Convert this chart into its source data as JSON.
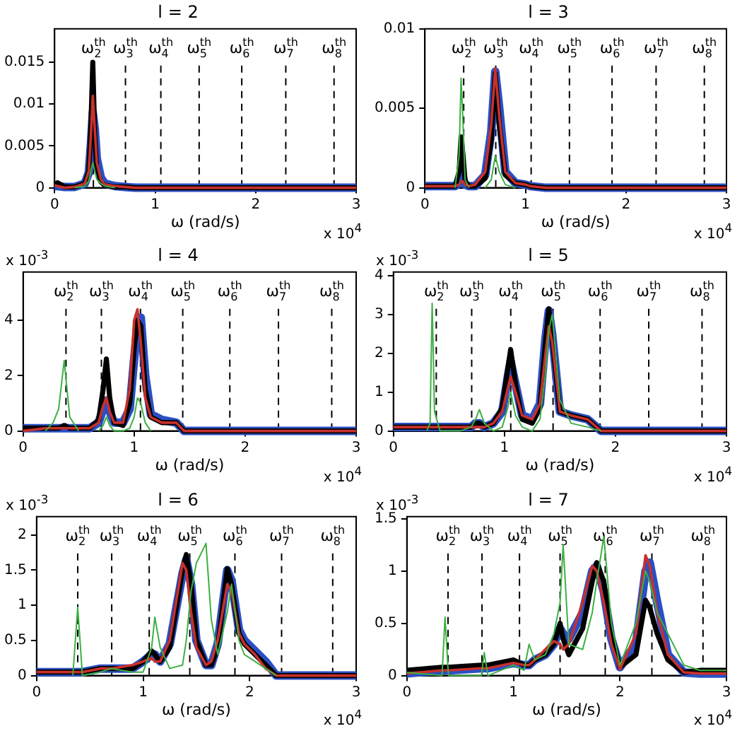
{
  "chart_data": [
    {
      "type": "line",
      "title": "l = 2",
      "xlabel": "ω (rad/s)",
      "annotations": [
        "x 10$^{4}$"
      ],
      "xlim": [
        0,
        3
      ],
      "xticks": [
        0,
        1,
        2,
        3
      ],
      "ylim": [
        0,
        0.019
      ],
      "yticks": [
        0,
        0.005,
        0.01,
        0.015
      ],
      "ref_lines": [
        {
          "axis": "x",
          "value": 0.386,
          "label": "ω$_{2}$$^{th}$",
          "color": "#000000",
          "line_style": "dashed"
        },
        {
          "axis": "x",
          "value": 0.705,
          "label": "ω$_{3}$$^{th}$",
          "color": "#000000",
          "line_style": "dashed"
        },
        {
          "axis": "x",
          "value": 1.057,
          "label": "ω$_{4}$$^{th}$",
          "color": "#000000",
          "line_style": "dashed"
        },
        {
          "axis": "x",
          "value": 1.438,
          "label": "ω$_{5}$$^{th}$",
          "color": "#000000",
          "line_style": "dashed"
        },
        {
          "axis": "x",
          "value": 1.862,
          "label": "ω$_{6}$$^{th}$",
          "color": "#000000",
          "line_style": "dashed"
        },
        {
          "axis": "x",
          "value": 2.3,
          "label": "ω$_{7}$$^{th}$",
          "color": "#000000",
          "line_style": "dashed"
        },
        {
          "axis": "x",
          "value": 2.78,
          "label": "ω$_{8}$$^{th}$",
          "color": "#000000",
          "line_style": "dashed"
        }
      ],
      "x": [
        0,
        0.03,
        0.1,
        0.2,
        0.3,
        0.34,
        0.36,
        0.38,
        0.4,
        0.42,
        0.46,
        0.5,
        0.6,
        0.7,
        0.8,
        1,
        1.5,
        2,
        2.5,
        3
      ],
      "series": [
        {
          "color": "#2a4fc4",
          "values": [
            0.0002,
            0.0002,
            0.0001,
            0.0001,
            0.0005,
            0.0018,
            0.005,
            0.009,
            0.007,
            0.0035,
            0.0012,
            0.0005,
            0.0002,
            0.0001,
            0,
            0,
            0,
            0,
            0,
            0
          ]
        },
        {
          "color": "#000000",
          "values": [
            0.0004,
            0.0006,
            0.0001,
            0.0001,
            0.0005,
            0.002,
            0.007,
            0.015,
            0.006,
            0.002,
            0.0007,
            0.0003,
            0.0001,
            0.0001,
            0,
            0,
            0,
            0,
            0,
            0
          ]
        },
        {
          "color": "#c8302c",
          "values": [
            0.0003,
            0.0002,
            0,
            0.0001,
            0.0005,
            0.002,
            0.006,
            0.011,
            0.007,
            0.003,
            0.001,
            0.0004,
            0.0002,
            0.0001,
            0,
            0,
            0,
            0,
            0,
            0
          ]
        },
        {
          "color": "#3cb043",
          "values": [
            null,
            null,
            null,
            0,
            0.0002,
            0.0008,
            0.002,
            0.003,
            0.002,
            0.001,
            0.0005,
            0.0002,
            0,
            null,
            null,
            null,
            null,
            null,
            null,
            null
          ]
        }
      ]
    },
    {
      "type": "line",
      "title": "l = 3",
      "xlabel": "ω (rad/s)",
      "annotations": [
        "x 10$^{4}$"
      ],
      "xlim": [
        0,
        3
      ],
      "xticks": [
        0,
        1,
        2,
        3
      ],
      "ylim": [
        0,
        0.01
      ],
      "yticks": [
        0,
        0.005,
        0.01
      ],
      "ref_lines": [
        {
          "axis": "x",
          "value": 0.386,
          "label": "ω$_{2}$$^{th}$",
          "color": "#000000",
          "line_style": "dashed"
        },
        {
          "axis": "x",
          "value": 0.705,
          "label": "ω$_{3}$$^{th}$",
          "color": "#000000",
          "line_style": "dashed"
        },
        {
          "axis": "x",
          "value": 1.057,
          "label": "ω$_{4}$$^{th}$",
          "color": "#000000",
          "line_style": "dashed"
        },
        {
          "axis": "x",
          "value": 1.438,
          "label": "ω$_{5}$$^{th}$",
          "color": "#000000",
          "line_style": "dashed"
        },
        {
          "axis": "x",
          "value": 1.862,
          "label": "ω$_{6}$$^{th}$",
          "color": "#000000",
          "line_style": "dashed"
        },
        {
          "axis": "x",
          "value": 2.3,
          "label": "ω$_{7}$$^{th}$",
          "color": "#000000",
          "line_style": "dashed"
        },
        {
          "axis": "x",
          "value": 2.78,
          "label": "ω$_{8}$$^{th}$",
          "color": "#000000",
          "line_style": "dashed"
        }
      ],
      "x": [
        0,
        0.2,
        0.3,
        0.34,
        0.36,
        0.38,
        0.4,
        0.44,
        0.5,
        0.6,
        0.66,
        0.7,
        0.74,
        0.8,
        0.9,
        1,
        1.05,
        1.2,
        2,
        3
      ],
      "series": [
        {
          "color": "#2a4fc4",
          "values": [
            0.0001,
            0.0001,
            0.0001,
            0.0003,
            0.0008,
            0.0006,
            0.0002,
            0.0001,
            0.0001,
            0.0008,
            0.0035,
            0.0073,
            0.005,
            0.001,
            0.0003,
            0.0002,
            0.0001,
            0,
            0,
            0
          ]
        },
        {
          "color": "#000000",
          "values": [
            0.0001,
            0.0001,
            0.0001,
            0.001,
            0.0032,
            0.002,
            0.0004,
            0.0001,
            0.0001,
            0.0006,
            0.003,
            0.0072,
            0.004,
            0.0008,
            0.0003,
            0.0002,
            0.0001,
            0,
            0,
            0
          ]
        },
        {
          "color": "#c8302c",
          "values": [
            0.0001,
            0.0001,
            0.0001,
            0.0002,
            0.0004,
            0.0004,
            0.0002,
            0.0001,
            0.0002,
            0.001,
            0.004,
            0.0075,
            0.0045,
            0.001,
            0.0003,
            0.0002,
            0.0001,
            0,
            0,
            0
          ]
        },
        {
          "color": "#3cb043",
          "values": [
            null,
            null,
            0,
            0.002,
            0.0069,
            0.004,
            0.0005,
            0,
            null,
            0,
            0.0005,
            0.002,
            0.001,
            0.0002,
            0,
            null,
            null,
            null,
            null,
            null
          ]
        }
      ]
    },
    {
      "type": "line",
      "title": "l = 4",
      "xlabel": "ω (rad/s)",
      "annotations": [
        "x 10$^{4}$",
        "x 10$^{-3}$"
      ],
      "xlim": [
        0,
        3
      ],
      "xticks": [
        0,
        1,
        2,
        3
      ],
      "ylim": [
        0,
        5.75
      ],
      "yticks": [
        0,
        2,
        4
      ],
      "ref_lines": [
        {
          "axis": "x",
          "value": 0.386,
          "label": "ω$_{2}$$^{th}$",
          "color": "#000000",
          "line_style": "dashed"
        },
        {
          "axis": "x",
          "value": 0.705,
          "label": "ω$_{3}$$^{th}$",
          "color": "#000000",
          "line_style": "dashed"
        },
        {
          "axis": "x",
          "value": 1.057,
          "label": "ω$_{4}$$^{th}$",
          "color": "#000000",
          "line_style": "dashed"
        },
        {
          "axis": "x",
          "value": 1.438,
          "label": "ω$_{5}$$^{th}$",
          "color": "#000000",
          "line_style": "dashed"
        },
        {
          "axis": "x",
          "value": 1.862,
          "label": "ω$_{6}$$^{th}$",
          "color": "#000000",
          "line_style": "dashed"
        },
        {
          "axis": "x",
          "value": 2.3,
          "label": "ω$_{7}$$^{th}$",
          "color": "#000000",
          "line_style": "dashed"
        },
        {
          "axis": "x",
          "value": 2.78,
          "label": "ω$_{8}$$^{th}$",
          "color": "#000000",
          "line_style": "dashed"
        }
      ],
      "x": [
        0,
        0.2,
        0.27,
        0.32,
        0.37,
        0.42,
        0.5,
        0.6,
        0.68,
        0.72,
        0.75,
        0.78,
        0.82,
        0.9,
        0.96,
        1,
        1.03,
        1.06,
        1.1,
        1.15,
        1.25,
        1.38,
        1.45,
        2,
        3
      ],
      "series": [
        {
          "color": "#2a4fc4",
          "values": [
            0.1,
            0.1,
            0.1,
            0.1,
            0.1,
            0.1,
            0.1,
            0.1,
            0.3,
            0.8,
            1.1,
            0.7,
            0.3,
            0.3,
            0.8,
            2.6,
            3.8,
            4.1,
            2.0,
            0.6,
            0.4,
            0.3,
            0,
            0,
            0
          ]
        },
        {
          "color": "#000000",
          "values": [
            0.1,
            0.1,
            0.1,
            0.1,
            0.2,
            0.1,
            0.1,
            0.1,
            0.4,
            1.5,
            2.6,
            1.2,
            0.3,
            0.2,
            1.0,
            3.0,
            4.0,
            3.8,
            1.5,
            0.5,
            0.3,
            0.3,
            0,
            0,
            0
          ]
        },
        {
          "color": "#c8302c",
          "values": [
            0,
            0.1,
            0.1,
            0.1,
            0.1,
            0.1,
            0.1,
            0.1,
            0.3,
            0.9,
            1.2,
            0.7,
            0.3,
            0.3,
            1.5,
            4.0,
            4.4,
            3.2,
            1.2,
            0.5,
            0.3,
            0.3,
            0,
            0,
            0
          ]
        },
        {
          "color": "#3cb043",
          "values": [
            null,
            0,
            0.3,
            0.8,
            2.55,
            0.5,
            0,
            null,
            0,
            0.2,
            0.5,
            0.2,
            0,
            0,
            0.1,
            0.5,
            1.2,
            1.0,
            0.3,
            0,
            null,
            null,
            null,
            null,
            null
          ]
        }
      ]
    },
    {
      "type": "line",
      "title": "l = 5",
      "xlabel": "ω (rad/s)",
      "annotations": [
        "x 10$^{4}$",
        "x 10$^{-3}$"
      ],
      "xlim": [
        0,
        3
      ],
      "xticks": [
        0,
        1,
        2,
        3
      ],
      "ylim": [
        0,
        4.1
      ],
      "yticks": [
        0,
        1,
        2,
        3,
        4
      ],
      "ref_lines": [
        {
          "axis": "x",
          "value": 0.386,
          "label": "ω$_{2}$$^{th}$",
          "color": "#000000",
          "line_style": "dashed"
        },
        {
          "axis": "x",
          "value": 0.705,
          "label": "ω$_{3}$$^{th}$",
          "color": "#000000",
          "line_style": "dashed"
        },
        {
          "axis": "x",
          "value": 1.057,
          "label": "ω$_{4}$$^{th}$",
          "color": "#000000",
          "line_style": "dashed"
        },
        {
          "axis": "x",
          "value": 1.438,
          "label": "ω$_{5}$$^{th}$",
          "color": "#000000",
          "line_style": "dashed"
        },
        {
          "axis": "x",
          "value": 1.862,
          "label": "ω$_{6}$$^{th}$",
          "color": "#000000",
          "line_style": "dashed"
        },
        {
          "axis": "x",
          "value": 2.3,
          "label": "ω$_{7}$$^{th}$",
          "color": "#000000",
          "line_style": "dashed"
        },
        {
          "axis": "x",
          "value": 2.78,
          "label": "ω$_{8}$$^{th}$",
          "color": "#000000",
          "line_style": "dashed"
        }
      ],
      "x": [
        0,
        0.3,
        0.33,
        0.349,
        0.37,
        0.42,
        0.6,
        0.7,
        0.74,
        0.774,
        0.82,
        0.9,
        0.98,
        1.03,
        1.056,
        1.1,
        1.16,
        1.25,
        1.32,
        1.37,
        1.4,
        1.43,
        1.5,
        1.6,
        1.75,
        1.87,
        2,
        3
      ],
      "series": [
        {
          "color": "#2a4fc4",
          "values": [
            0.1,
            0.1,
            0.1,
            0.1,
            0.1,
            0.1,
            0.1,
            0.1,
            0.2,
            0.2,
            0.1,
            0.2,
            0.5,
            1.4,
            1.8,
            1.2,
            0.4,
            0.3,
            0.7,
            2.4,
            3.1,
            2.5,
            0.5,
            0.4,
            0.3,
            0,
            0,
            0
          ]
        },
        {
          "color": "#000000",
          "values": [
            0.1,
            0.1,
            0.1,
            0.1,
            0.1,
            0.1,
            0.1,
            0.1,
            0.2,
            0.2,
            0.1,
            0.2,
            0.6,
            1.6,
            2.1,
            1.2,
            0.3,
            0.2,
            0.6,
            2.3,
            3.15,
            2.4,
            0.5,
            0.4,
            0.3,
            0,
            0,
            0
          ]
        },
        {
          "color": "#c8302c",
          "values": [
            0.1,
            0.1,
            0.1,
            0.1,
            0.1,
            0.1,
            0.1,
            0.1,
            0.1,
            0.1,
            0.1,
            0.2,
            0.5,
            1.1,
            1.4,
            1.0,
            0.4,
            0.3,
            0.7,
            2.0,
            2.7,
            2.3,
            0.5,
            0.4,
            0.3,
            0,
            0,
            0
          ]
        },
        {
          "color": "#3cb043",
          "values": [
            null,
            0,
            0.2,
            3.3,
            0.5,
            0,
            0,
            0.1,
            0.3,
            0.55,
            0.2,
            0,
            0.1,
            0.6,
            1.0,
            0.4,
            0.1,
            0,
            0.3,
            1.5,
            2.6,
            3.0,
            0.8,
            0.2,
            0.1,
            0,
            null,
            null
          ]
        }
      ]
    },
    {
      "type": "line",
      "title": "l = 6",
      "xlabel": "ω (rad/s)",
      "annotations": [
        "x 10$^{4}$",
        "x 10$^{-3}$"
      ],
      "xlim": [
        0,
        3
      ],
      "xticks": [
        0,
        1,
        2,
        3
      ],
      "ylim": [
        0,
        2.26
      ],
      "yticks": [
        0,
        0.5,
        1,
        1.5,
        2
      ],
      "ref_lines": [
        {
          "axis": "x",
          "value": 0.386,
          "label": "ω$_{2}$$^{th}$",
          "color": "#000000",
          "line_style": "dashed"
        },
        {
          "axis": "x",
          "value": 0.705,
          "label": "ω$_{3}$$^{th}$",
          "color": "#000000",
          "line_style": "dashed"
        },
        {
          "axis": "x",
          "value": 1.057,
          "label": "ω$_{4}$$^{th}$",
          "color": "#000000",
          "line_style": "dashed"
        },
        {
          "axis": "x",
          "value": 1.438,
          "label": "ω$_{5}$$^{th}$",
          "color": "#000000",
          "line_style": "dashed"
        },
        {
          "axis": "x",
          "value": 1.862,
          "label": "ω$_{6}$$^{th}$",
          "color": "#000000",
          "line_style": "dashed"
        },
        {
          "axis": "x",
          "value": 2.3,
          "label": "ω$_{7}$$^{th}$",
          "color": "#000000",
          "line_style": "dashed"
        },
        {
          "axis": "x",
          "value": 2.78,
          "label": "ω$_{8}$$^{th}$",
          "color": "#000000",
          "line_style": "dashed"
        }
      ],
      "x": [
        0,
        0.2,
        0.34,
        0.386,
        0.43,
        0.6,
        0.7,
        0.9,
        1,
        1.08,
        1.11,
        1.16,
        1.25,
        1.37,
        1.405,
        1.45,
        1.5,
        1.59,
        1.64,
        1.7,
        1.79,
        1.83,
        1.9,
        1.95,
        2.05,
        2.15,
        2.25,
        2.5,
        3
      ],
      "series": [
        {
          "color": "#2a4fc4",
          "values": [
            0.05,
            0.05,
            0.05,
            0.05,
            0.05,
            0.1,
            0.1,
            0.1,
            0.2,
            0.3,
            0.3,
            0.2,
            0.45,
            1.45,
            1.65,
            1.3,
            0.5,
            0.15,
            0.15,
            0.45,
            1.5,
            1.35,
            0.65,
            0.5,
            0.35,
            0.2,
            0,
            0,
            0
          ]
        },
        {
          "color": "#000000",
          "values": [
            0.05,
            0.05,
            0.05,
            0.05,
            0.05,
            0.1,
            0.1,
            0.1,
            0.2,
            0.35,
            0.3,
            0.2,
            0.4,
            1.5,
            1.72,
            1.3,
            0.5,
            0.15,
            0.15,
            0.4,
            1.52,
            1.3,
            0.6,
            0.45,
            0.3,
            0.15,
            0,
            0,
            0
          ]
        },
        {
          "color": "#c8302c",
          "values": [
            0.05,
            0.05,
            0.05,
            0.05,
            0.05,
            0.1,
            0.1,
            0.15,
            0.2,
            0.25,
            0.2,
            0.2,
            0.5,
            1.6,
            1.5,
            0.9,
            0.4,
            0.15,
            0.2,
            0.5,
            1.3,
            1.2,
            0.6,
            0.45,
            0.3,
            0.1,
            0,
            0,
            0
          ]
        },
        {
          "color": "#3cb043",
          "values": [
            null,
            null,
            0,
            0.97,
            0,
            0.05,
            0.1,
            0.05,
            0.05,
            0.4,
            0.83,
            0.4,
            0.1,
            0.15,
            0.5,
            1.2,
            1.6,
            1.88,
            0.8,
            0.3,
            0.9,
            1.3,
            0.5,
            0.3,
            0.2,
            0.1,
            0,
            null,
            null
          ]
        }
      ]
    },
    {
      "type": "line",
      "title": "l = 7",
      "xlabel": "ω (rad/s)",
      "annotations": [
        "x 10$^{4}$",
        "x 10$^{-3}$"
      ],
      "xlim": [
        0,
        3
      ],
      "xticks": [
        0,
        1,
        2,
        3
      ],
      "ylim": [
        0,
        1.52
      ],
      "yticks": [
        0,
        0.5,
        1,
        1.5
      ],
      "ref_lines": [
        {
          "axis": "x",
          "value": 0.386,
          "label": "ω$_{2}$$^{th}$",
          "color": "#000000",
          "line_style": "dashed"
        },
        {
          "axis": "x",
          "value": 0.705,
          "label": "ω$_{3}$$^{th}$",
          "color": "#000000",
          "line_style": "dashed"
        },
        {
          "axis": "x",
          "value": 1.057,
          "label": "ω$_{4}$$^{th}$",
          "color": "#000000",
          "line_style": "dashed"
        },
        {
          "axis": "x",
          "value": 1.438,
          "label": "ω$_{5}$$^{th}$",
          "color": "#000000",
          "line_style": "dashed"
        },
        {
          "axis": "x",
          "value": 1.862,
          "label": "ω$_{6}$$^{th}$",
          "color": "#000000",
          "line_style": "dashed"
        },
        {
          "axis": "x",
          "value": 2.3,
          "label": "ω$_{7}$$^{th}$",
          "color": "#000000",
          "line_style": "dashed"
        },
        {
          "axis": "x",
          "value": 2.78,
          "label": "ω$_{8}$$^{th}$",
          "color": "#000000",
          "line_style": "dashed"
        }
      ],
      "x": [
        0,
        0.33,
        0.358,
        0.39,
        0.7,
        0.726,
        0.76,
        1,
        1.1,
        1.147,
        1.2,
        1.3,
        1.38,
        1.438,
        1.467,
        1.52,
        1.65,
        1.74,
        1.782,
        1.849,
        1.92,
        2,
        2.15,
        2.24,
        2.28,
        2.35,
        2.45,
        2.6,
        2.75,
        3
      ],
      "series": [
        {
          "color": "#2a4fc4",
          "values": [
            0.02,
            0.05,
            0.05,
            0.05,
            0.07,
            0.07,
            0.07,
            0.12,
            0.1,
            0.1,
            0.15,
            0.2,
            0.3,
            0.45,
            0.4,
            0.35,
            0.6,
            1.0,
            1.05,
            0.8,
            0.35,
            0.08,
            0.3,
            1.0,
            1.08,
            0.7,
            0.2,
            0.03,
            0.02,
            0.02
          ]
        },
        {
          "color": "#000000",
          "values": [
            0.05,
            0.08,
            0.08,
            0.08,
            0.1,
            0.1,
            0.1,
            0.15,
            0.1,
            0.1,
            0.15,
            0.2,
            0.3,
            0.5,
            0.35,
            0.2,
            0.45,
            0.9,
            1.08,
            0.9,
            0.4,
            0.08,
            0.2,
            0.72,
            0.65,
            0.4,
            0.15,
            0.03,
            0.05,
            0.05
          ]
        },
        {
          "color": "#c8302c",
          "values": [
            0.02,
            0.05,
            0.05,
            0.05,
            0.07,
            0.07,
            0.07,
            0.12,
            0.1,
            0.1,
            0.15,
            0.25,
            0.33,
            0.3,
            0.25,
            0.3,
            0.7,
            1.05,
            1.0,
            0.7,
            0.3,
            0.06,
            0.4,
            1.15,
            1.05,
            0.6,
            0.2,
            0.03,
            0.02,
            0.02
          ]
        },
        {
          "color": "#3cb043",
          "values": [
            0.03,
            0,
            0.56,
            0,
            0,
            0.22,
            0,
            0.1,
            0.05,
            0.3,
            0.15,
            0.2,
            0.4,
            0.7,
            1.25,
            0.3,
            0.25,
            0.6,
            0.9,
            1.33,
            0.5,
            0.1,
            0.5,
            1.0,
            0.9,
            0.6,
            0.4,
            0.1,
            0.05,
            0.05
          ]
        }
      ]
    }
  ]
}
